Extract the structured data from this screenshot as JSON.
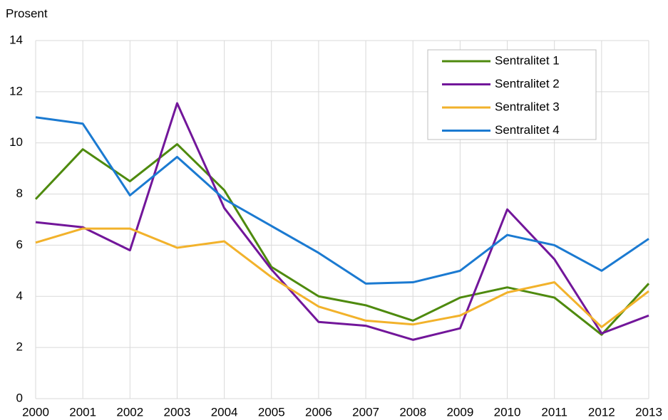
{
  "chart_data": {
    "type": "line",
    "y_label": "Prosent",
    "x": [
      2000,
      2001,
      2002,
      2003,
      2004,
      2005,
      2006,
      2007,
      2008,
      2009,
      2010,
      2011,
      2012,
      2013
    ],
    "series": [
      {
        "name": "Sentralitet 1",
        "color": "#4e8a0e",
        "values": [
          7.8,
          9.75,
          8.5,
          9.95,
          8.15,
          5.15,
          4.0,
          3.65,
          3.05,
          3.95,
          4.35,
          3.95,
          2.5,
          4.5
        ]
      },
      {
        "name": "Sentralitet 2",
        "color": "#72169a",
        "values": [
          6.9,
          6.7,
          5.8,
          11.55,
          7.45,
          5.05,
          3.0,
          2.85,
          2.3,
          2.75,
          7.4,
          5.45,
          2.55,
          3.25
        ]
      },
      {
        "name": "Sentralitet 3",
        "color": "#f2b22b",
        "values": [
          6.1,
          6.65,
          6.65,
          5.9,
          6.15,
          4.75,
          3.6,
          3.05,
          2.9,
          3.25,
          4.15,
          4.55,
          2.8,
          4.2
        ]
      },
      {
        "name": "Sentralitet 4",
        "color": "#1b7ad1",
        "values": [
          11.0,
          10.75,
          7.95,
          9.45,
          7.8,
          6.75,
          5.7,
          4.5,
          4.55,
          5.0,
          6.4,
          6.0,
          5.0,
          6.25
        ]
      }
    ],
    "xlim": [
      2000,
      2013
    ],
    "xticks": [
      2000,
      2001,
      2002,
      2003,
      2004,
      2005,
      2006,
      2007,
      2008,
      2009,
      2010,
      2011,
      2012,
      2013
    ],
    "ylim": [
      0,
      14
    ],
    "yticks": [
      0,
      2,
      4,
      6,
      8,
      10,
      12,
      14
    ],
    "grid": true,
    "legend": "upper right"
  }
}
